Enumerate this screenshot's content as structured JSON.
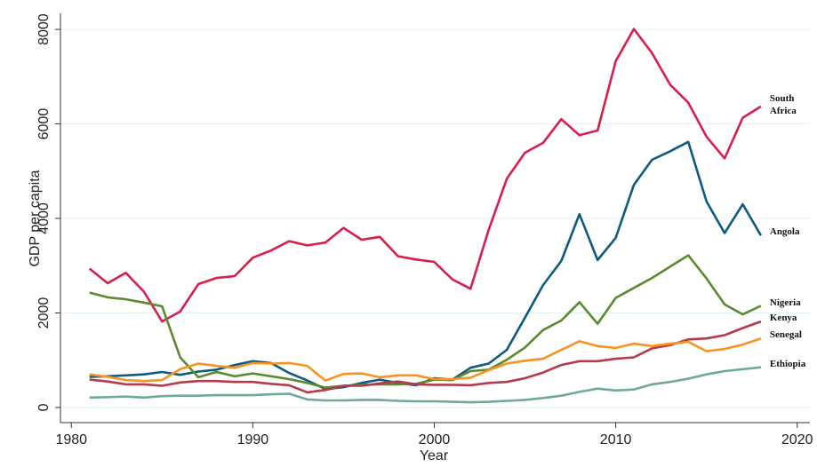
{
  "chart_data": {
    "type": "line",
    "xlabel": "Year",
    "ylabel": "GDP per capita",
    "x": [
      1981,
      1982,
      1983,
      1984,
      1985,
      1986,
      1987,
      1988,
      1989,
      1990,
      1991,
      1992,
      1993,
      1994,
      1995,
      1996,
      1997,
      1998,
      1999,
      2000,
      2001,
      2002,
      2003,
      2004,
      2005,
      2006,
      2007,
      2008,
      2009,
      2010,
      2011,
      2012,
      2013,
      2014,
      2015,
      2016,
      2017,
      2018
    ],
    "xlim": [
      1979.4,
      2020.7
    ],
    "xticks": [
      1980,
      1990,
      2000,
      2010,
      2020
    ],
    "ylim": [
      -320,
      8340
    ],
    "yticks": [
      0,
      2000,
      4000,
      6000,
      8000
    ],
    "grid": true,
    "series": [
      {
        "name": "South Africa",
        "color": "#d91e4e",
        "values": [
          2940,
          2630,
          2850,
          2450,
          1820,
          2030,
          2610,
          2740,
          2780,
          3170,
          3320,
          3520,
          3430,
          3490,
          3800,
          3550,
          3610,
          3200,
          3130,
          3080,
          2710,
          2510,
          3760,
          4840,
          5390,
          5600,
          6100,
          5760,
          5860,
          7330,
          8010,
          7500,
          6830,
          6450,
          5730,
          5270,
          6130,
          6370
        ]
      },
      {
        "name": "Angola",
        "color": "#0f5a80",
        "values": [
          650,
          660,
          680,
          700,
          750,
          690,
          760,
          800,
          900,
          980,
          940,
          730,
          570,
          390,
          430,
          520,
          590,
          520,
          470,
          620,
          590,
          840,
          930,
          1220,
          1900,
          2590,
          3100,
          4090,
          3120,
          3590,
          4710,
          5240,
          5420,
          5620,
          4360,
          3690,
          4300,
          3640
        ]
      },
      {
        "name": "Nigeria",
        "color": "#5b8a2e",
        "values": [
          2430,
          2330,
          2290,
          2220,
          2140,
          1060,
          640,
          750,
          660,
          720,
          660,
          600,
          520,
          420,
          460,
          480,
          490,
          490,
          500,
          590,
          580,
          770,
          800,
          1010,
          1270,
          1640,
          1840,
          2230,
          1770,
          2320,
          2530,
          2740,
          2980,
          3220,
          2730,
          2180,
          1970,
          2150
        ]
      },
      {
        "name": "Kenya",
        "color": "#b53a4c",
        "values": [
          590,
          550,
          490,
          490,
          460,
          530,
          560,
          560,
          540,
          540,
          500,
          470,
          320,
          370,
          460,
          460,
          510,
          550,
          490,
          480,
          480,
          470,
          520,
          540,
          620,
          740,
          900,
          980,
          980,
          1030,
          1060,
          1250,
          1320,
          1440,
          1460,
          1530,
          1680,
          1820
        ]
      },
      {
        "name": "Senegal",
        "color": "#f7931e",
        "values": [
          700,
          650,
          580,
          560,
          580,
          810,
          930,
          880,
          840,
          940,
          930,
          940,
          880,
          570,
          710,
          720,
          640,
          680,
          680,
          600,
          600,
          630,
          790,
          930,
          990,
          1030,
          1220,
          1400,
          1300,
          1260,
          1350,
          1300,
          1350,
          1390,
          1190,
          1240,
          1330,
          1460
        ]
      },
      {
        "name": "Ethiopia",
        "color": "#6fa99c",
        "values": [
          210,
          220,
          230,
          210,
          240,
          250,
          250,
          260,
          260,
          260,
          280,
          290,
          170,
          150,
          150,
          160,
          160,
          140,
          130,
          130,
          120,
          110,
          120,
          140,
          160,
          200,
          250,
          330,
          400,
          360,
          380,
          490,
          540,
          610,
          700,
          770,
          810,
          850
        ]
      }
    ]
  }
}
